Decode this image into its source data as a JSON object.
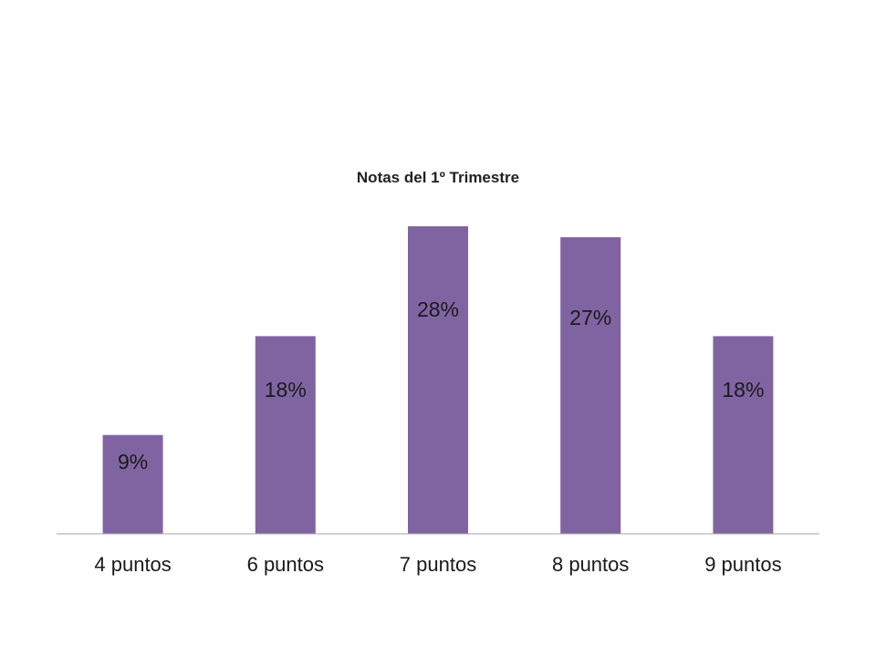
{
  "chart_data": {
    "type": "bar",
    "title": "Notas del 1º Trimestre",
    "categories": [
      "4 puntos",
      "6 puntos",
      "7 puntos",
      "8 puntos",
      "9 puntos"
    ],
    "values": [
      9,
      18,
      28,
      27,
      18
    ],
    "data_labels": [
      "9%",
      "18%",
      "28%",
      "27%",
      "18%"
    ],
    "unit": "%",
    "ylim": [
      0,
      28
    ],
    "grid": false,
    "legend": "none",
    "y_axis_visible": false,
    "colors": {
      "bar": "#8064a2",
      "axis": "#a6a6a6",
      "text": "#1a1a1a"
    }
  }
}
